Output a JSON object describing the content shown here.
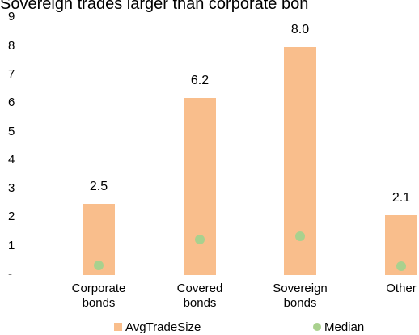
{
  "chart_data": {
    "type": "bar",
    "title": "Sovereign trades larger than corporate bon",
    "categories": [
      [
        "Corporate",
        "bonds"
      ],
      [
        "Covered",
        "bonds"
      ],
      [
        "Sovereign",
        "bonds"
      ],
      [
        "Other",
        ""
      ]
    ],
    "series": [
      {
        "name": "AvgTradeSize",
        "kind": "bar",
        "values": [
          2.5,
          6.2,
          8.0,
          2.1
        ],
        "color": "#f9be8c"
      },
      {
        "name": "Median",
        "kind": "scatter",
        "values": [
          0.35,
          1.25,
          1.35,
          0.3
        ],
        "color": "#a9d18e"
      }
    ],
    "data_labels": [
      "2.5",
      "6.2",
      "8.0",
      "2.1"
    ],
    "y_ticks": [
      "-",
      "1",
      "2",
      "3",
      "4",
      "5",
      "6",
      "7",
      "8",
      "9"
    ],
    "ylim": [
      0,
      9
    ],
    "grid": false,
    "legend_position": "bottom"
  }
}
